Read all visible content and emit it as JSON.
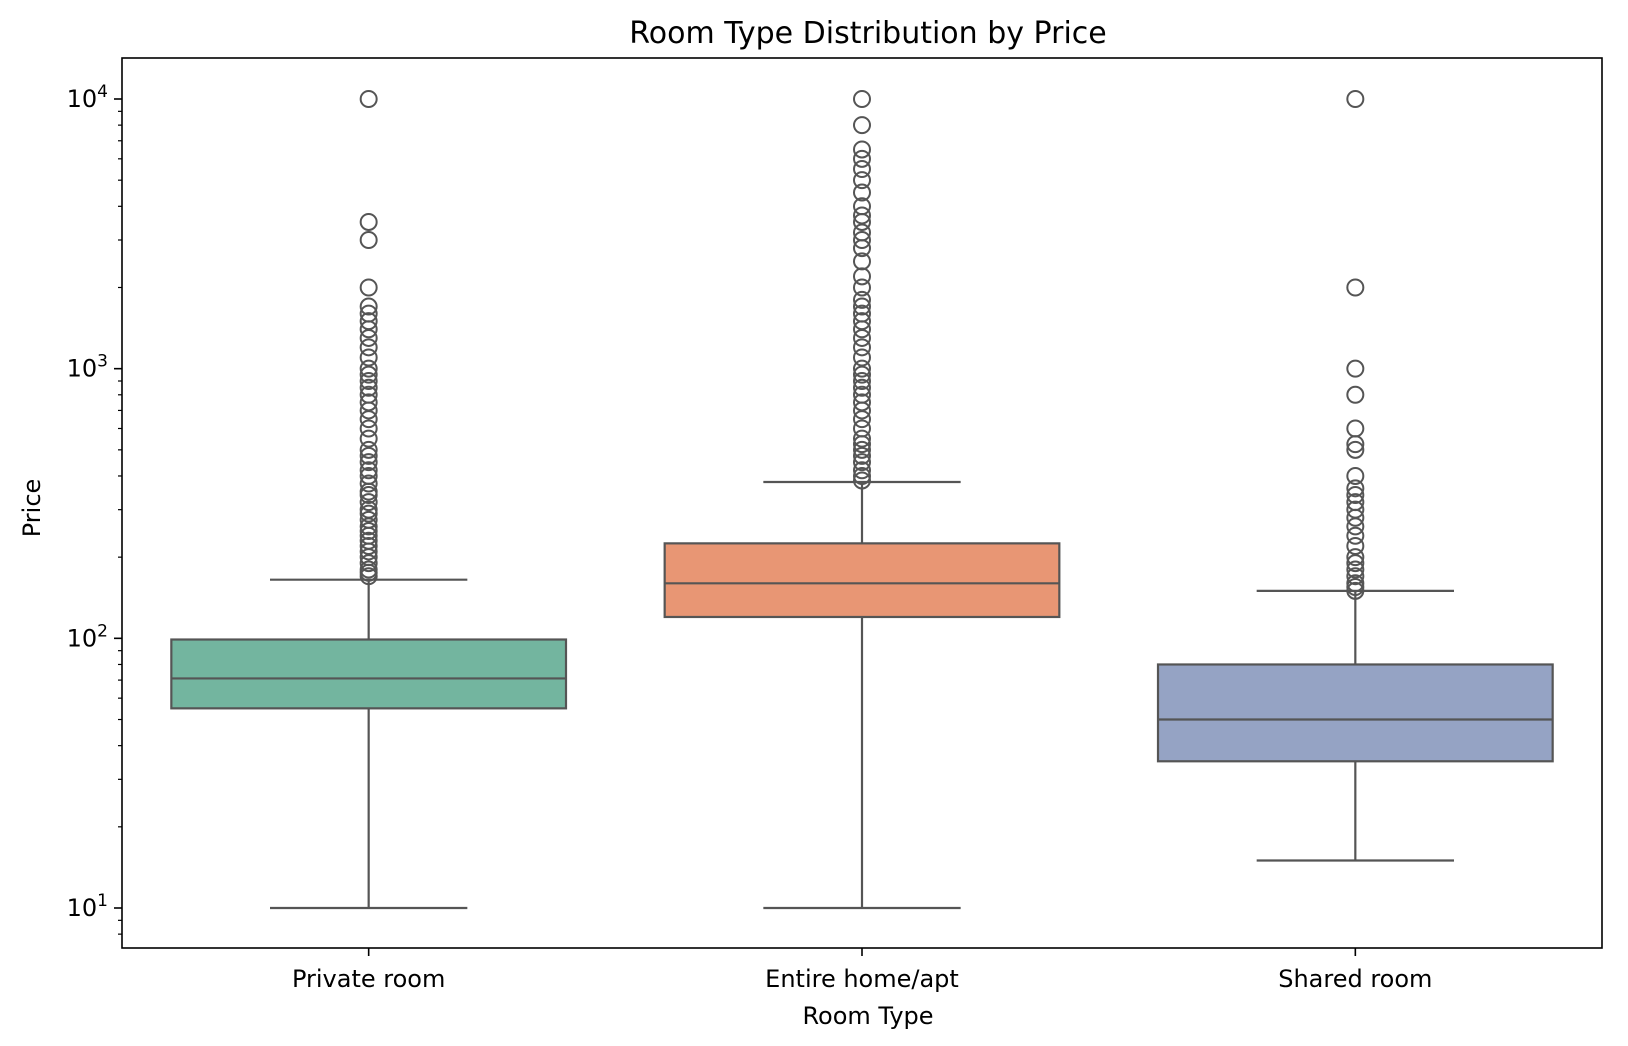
{
  "chart_data": {
    "type": "box",
    "title": "Room Type Distribution by Price",
    "xlabel": "Room Type",
    "ylabel": "Price",
    "yscale": "log",
    "ylim": [
      7.5,
      14500
    ],
    "grid": false,
    "legend": "none",
    "categories": [
      "Private room",
      "Entire home/apt",
      "Shared room"
    ],
    "yticks": [
      {
        "value": 10,
        "base": "10",
        "exp": "1"
      },
      {
        "value": 100,
        "base": "10",
        "exp": "2"
      },
      {
        "value": 1000,
        "base": "10",
        "exp": "3"
      },
      {
        "value": 10000,
        "base": "10",
        "exp": "4"
      }
    ],
    "boxes": [
      {
        "category": "Private room",
        "color": "#73b59f",
        "whisker_low": 10,
        "q1": 55,
        "median": 71,
        "q3": 99,
        "whisker_high": 165,
        "outliers": [
          170,
          175,
          180,
          190,
          200,
          210,
          220,
          230,
          240,
          250,
          260,
          275,
          290,
          300,
          320,
          340,
          350,
          375,
          400,
          420,
          450,
          475,
          500,
          550,
          600,
          650,
          700,
          750,
          800,
          850,
          900,
          950,
          1000,
          1100,
          1200,
          1300,
          1400,
          1500,
          1600,
          1700,
          2000,
          3000,
          3500,
          10000
        ]
      },
      {
        "category": "Entire home/apt",
        "color": "#e89674",
        "whisker_low": 10,
        "q1": 120,
        "median": 160,
        "q3": 225,
        "whisker_high": 380,
        "outliers": [
          385,
          400,
          420,
          450,
          475,
          500,
          525,
          550,
          600,
          650,
          700,
          750,
          800,
          850,
          900,
          950,
          1000,
          1100,
          1200,
          1300,
          1400,
          1500,
          1600,
          1700,
          1800,
          2000,
          2200,
          2500,
          2800,
          3000,
          3200,
          3500,
          3700,
          4000,
          4500,
          5000,
          5500,
          6000,
          6500,
          8000,
          10000
        ]
      },
      {
        "category": "Shared room",
        "color": "#95a3c4",
        "whisker_low": 15,
        "q1": 35,
        "median": 50,
        "q3": 80,
        "whisker_high": 150,
        "outliers": [
          150,
          155,
          160,
          170,
          180,
          190,
          200,
          220,
          240,
          260,
          280,
          300,
          320,
          340,
          360,
          400,
          500,
          525,
          600,
          800,
          1000,
          2000,
          10000
        ]
      }
    ]
  }
}
